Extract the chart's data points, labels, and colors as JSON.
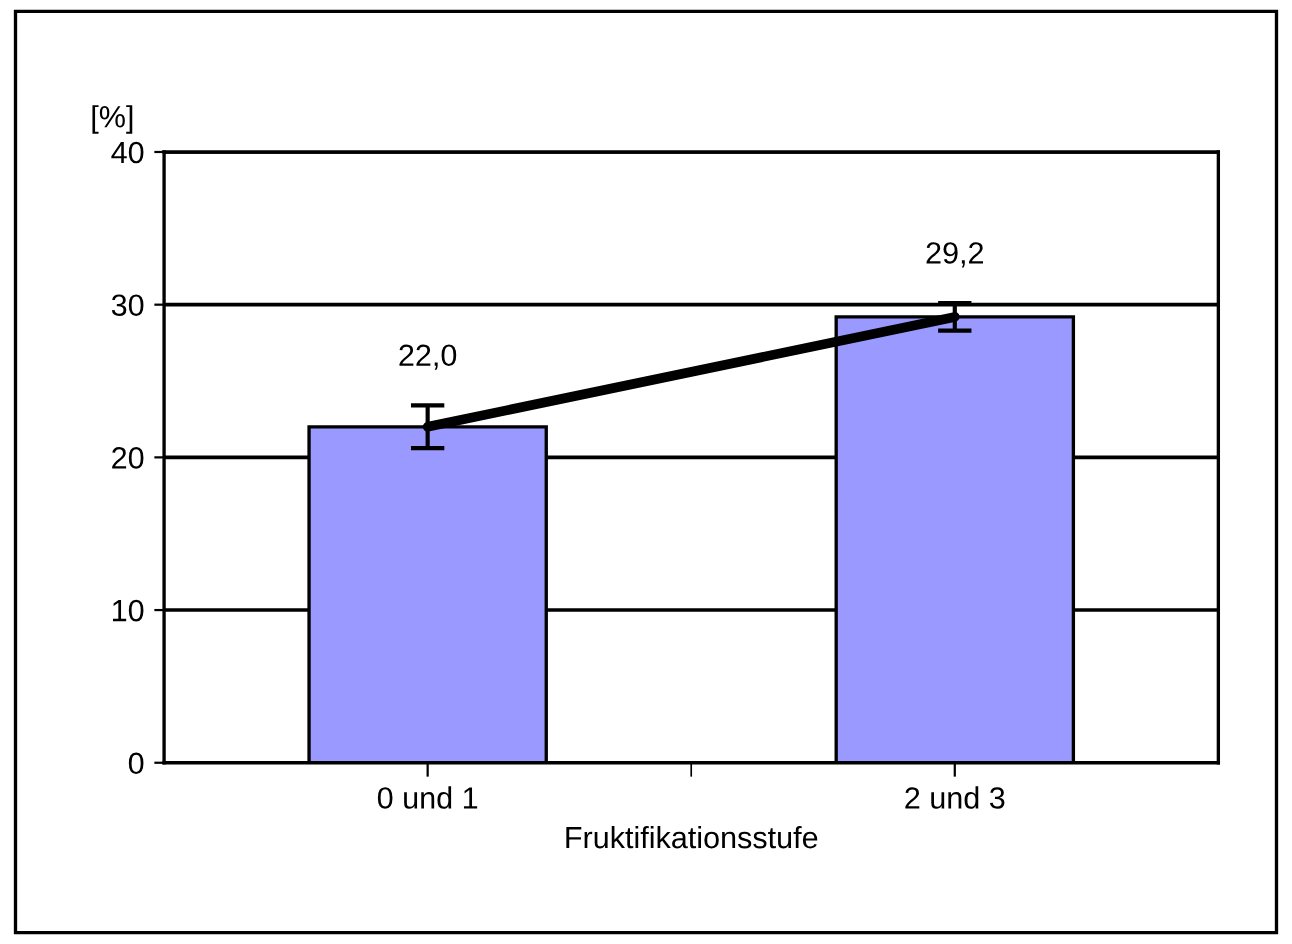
{
  "chart_data": {
    "type": "bar",
    "xlabel": "Fruktifikationsstufe",
    "ylabel": "[%]",
    "categories": [
      "0 und 1",
      "2 und 3"
    ],
    "series": [
      {
        "color": "#9999ff",
        "values": [
          22.0,
          29.2
        ],
        "errors": [
          1.4,
          0.9
        ],
        "value_labels": [
          "22,0",
          "29,2"
        ]
      },
      {
        "type": "line",
        "color": "#000000",
        "values": [
          22.0,
          29.2
        ]
      }
    ],
    "ylim": [
      0,
      40
    ],
    "yticks": [
      0,
      10,
      20,
      30,
      40
    ],
    "grid": "y",
    "legend": false
  }
}
